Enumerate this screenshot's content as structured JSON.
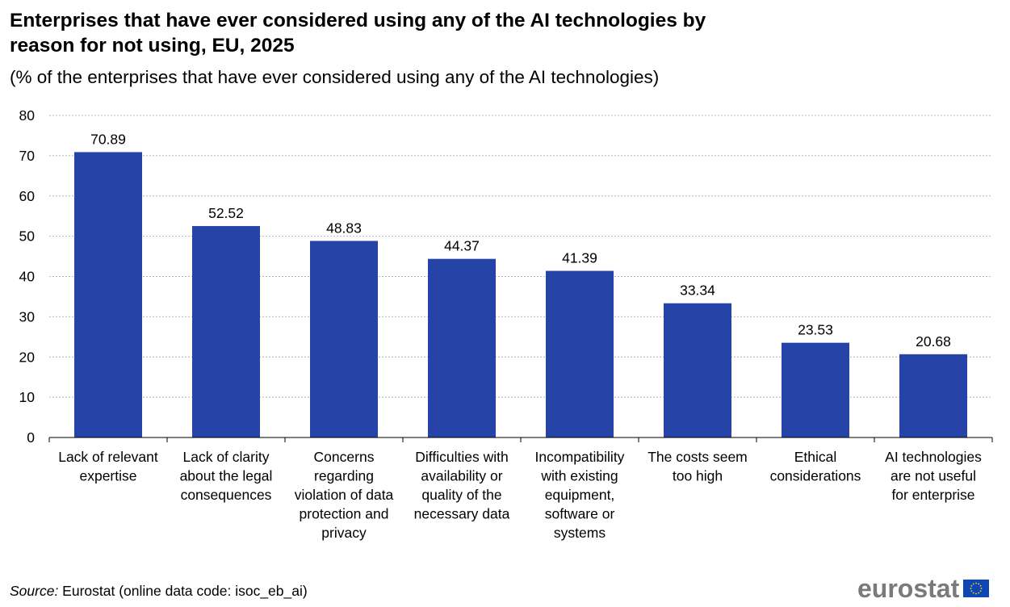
{
  "chart_data": {
    "type": "bar",
    "title": "Enterprises that have ever considered using any of the AI technologies by reason for not using, EU, 2025",
    "subtitle": "(% of the enterprises that have ever considered using any of the AI technologies)",
    "categories": [
      [
        "Lack of relevant",
        "expertise"
      ],
      [
        "Lack of clarity",
        "about the legal",
        "consequences"
      ],
      [
        "Concerns",
        "regarding",
        "violation of data",
        "protection and",
        "privacy"
      ],
      [
        "Difficulties with",
        "availability or",
        "quality of the",
        "necessary data"
      ],
      [
        "Incompatibility",
        "with existing",
        "equipment,",
        "software or",
        "systems"
      ],
      [
        "The costs seem",
        "too high"
      ],
      [
        "Ethical",
        "considerations"
      ],
      [
        "AI technologies",
        "are not useful",
        "for enterprise"
      ]
    ],
    "values": [
      70.89,
      52.52,
      48.83,
      44.37,
      41.39,
      33.34,
      23.53,
      20.68
    ],
    "value_labels": [
      "70.89",
      "52.52",
      "48.83",
      "44.37",
      "41.39",
      "33.34",
      "23.53",
      "20.68"
    ],
    "ylim": [
      0,
      80
    ],
    "yticks": [
      "0",
      "10",
      "20",
      "30",
      "40",
      "50",
      "60",
      "70",
      "80"
    ],
    "grid": true,
    "bar_color": "#2644a7"
  },
  "source": {
    "label": "Source:",
    "text": " Eurostat (online data code: isoc_eb_ai)"
  },
  "logo": {
    "text": "eurostat",
    "icon": "eu-flag-icon"
  }
}
